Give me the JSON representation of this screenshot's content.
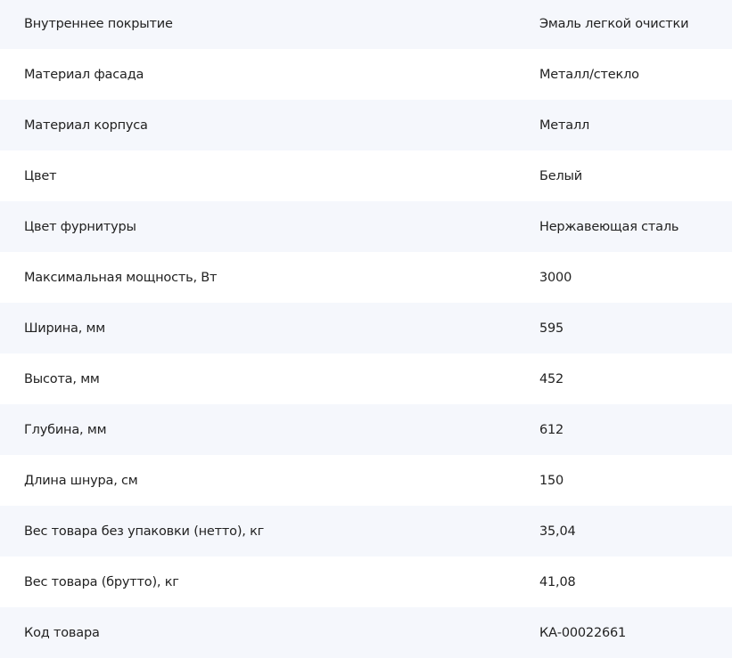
{
  "specs": [
    {
      "label": "Внутреннее покрытие",
      "value": "Эмаль легкой очистки"
    },
    {
      "label": "Материал фасада",
      "value": "Металл/стекло"
    },
    {
      "label": "Материал корпуса",
      "value": "Металл"
    },
    {
      "label": "Цвет",
      "value": "Белый"
    },
    {
      "label": "Цвет фурнитуры",
      "value": "Нержавеющая сталь"
    },
    {
      "label": "Максимальная мощность, Вт",
      "value": "3000"
    },
    {
      "label": "Ширина, мм",
      "value": "595"
    },
    {
      "label": "Высота, мм",
      "value": "452"
    },
    {
      "label": "Глубина, мм",
      "value": "612"
    },
    {
      "label": "Длина шнура, см",
      "value": "150"
    },
    {
      "label": "Вес товара без упаковки (нетто), кг",
      "value": "35,04"
    },
    {
      "label": "Вес товара (брутто), кг",
      "value": "41,08"
    },
    {
      "label": "Код товара",
      "value": "КА-00022661"
    }
  ],
  "colors": {
    "stripe": "#f5f7fc",
    "text": "#222222"
  }
}
